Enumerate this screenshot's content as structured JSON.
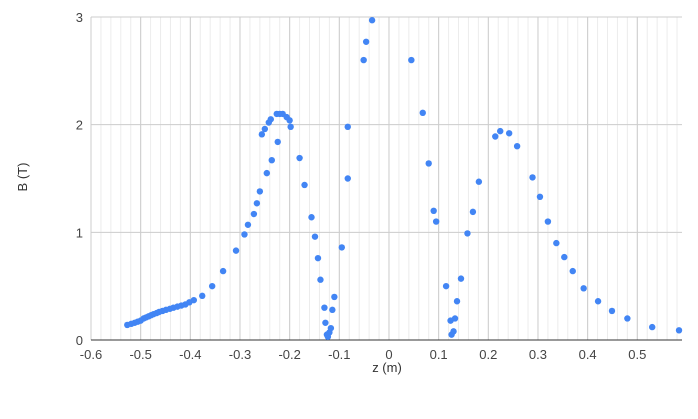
{
  "chart_data": {
    "type": "scatter",
    "xlabel": "z (m)",
    "ylabel": "B (T)",
    "xlim": [
      -0.6,
      0.59
    ],
    "ylim": [
      0,
      3
    ],
    "x_ticks": [
      -0.6,
      -0.5,
      -0.4,
      -0.3,
      -0.2,
      -0.1,
      0,
      0.1,
      0.2,
      0.3,
      0.4,
      0.5
    ],
    "x_tick_labels": [
      "-0.6",
      "-0.5",
      "-0.4",
      "-0.3",
      "-0.2",
      "-0.1",
      "0",
      "0.1",
      "0.2",
      "0.3",
      "0.4",
      "0.5"
    ],
    "y_ticks": [
      0,
      1,
      2,
      3
    ],
    "y_tick_labels": [
      "0",
      "1",
      "2",
      "3"
    ],
    "x_minor_step": 0.02,
    "grid": true,
    "legend": "none",
    "marker_color": "#4285F4",
    "series": [
      {
        "points": [
          [
            -0.527,
            0.14
          ],
          [
            -0.519,
            0.15
          ],
          [
            -0.512,
            0.16
          ],
          [
            -0.506,
            0.17
          ],
          [
            -0.5,
            0.18
          ],
          [
            -0.494,
            0.2
          ],
          [
            -0.489,
            0.21
          ],
          [
            -0.484,
            0.22
          ],
          [
            -0.479,
            0.23
          ],
          [
            -0.474,
            0.24
          ],
          [
            -0.468,
            0.25
          ],
          [
            -0.463,
            0.26
          ],
          [
            -0.456,
            0.27
          ],
          [
            -0.449,
            0.28
          ],
          [
            -0.441,
            0.29
          ],
          [
            -0.434,
            0.3
          ],
          [
            -0.426,
            0.31
          ],
          [
            -0.418,
            0.32
          ],
          [
            -0.41,
            0.33
          ],
          [
            -0.402,
            0.35
          ],
          [
            -0.393,
            0.37
          ],
          [
            -0.376,
            0.41
          ],
          [
            -0.356,
            0.5
          ],
          [
            -0.334,
            0.64
          ],
          [
            -0.308,
            0.83
          ],
          [
            -0.291,
            0.98
          ],
          [
            -0.284,
            1.07
          ],
          [
            -0.272,
            1.17
          ],
          [
            -0.266,
            1.27
          ],
          [
            -0.26,
            1.38
          ],
          [
            -0.256,
            1.91
          ],
          [
            -0.25,
            1.96
          ],
          [
            -0.246,
            1.55
          ],
          [
            -0.242,
            2.02
          ],
          [
            -0.238,
            2.05
          ],
          [
            -0.236,
            1.67
          ],
          [
            -0.226,
            2.1
          ],
          [
            -0.22,
            2.1
          ],
          [
            -0.224,
            1.84
          ],
          [
            -0.214,
            2.1
          ],
          [
            -0.206,
            2.07
          ],
          [
            -0.2,
            2.04
          ],
          [
            -0.198,
            1.98
          ],
          [
            -0.18,
            1.69
          ],
          [
            -0.17,
            1.44
          ],
          [
            -0.156,
            1.14
          ],
          [
            -0.149,
            0.96
          ],
          [
            -0.143,
            0.76
          ],
          [
            -0.138,
            0.56
          ],
          [
            -0.13,
            0.3
          ],
          [
            -0.128,
            0.16
          ],
          [
            -0.125,
            0.05
          ],
          [
            -0.123,
            0.03
          ],
          [
            -0.12,
            0.07
          ],
          [
            -0.117,
            0.11
          ],
          [
            -0.114,
            0.28
          ],
          [
            -0.11,
            0.4
          ],
          [
            -0.095,
            0.86
          ],
          [
            -0.083,
            1.5
          ],
          [
            -0.083,
            1.98
          ],
          [
            -0.051,
            2.6
          ],
          [
            -0.046,
            2.77
          ],
          [
            -0.034,
            2.97
          ],
          [
            0.045,
            2.6
          ],
          [
            0.068,
            2.11
          ],
          [
            0.08,
            1.64
          ],
          [
            0.09,
            1.2
          ],
          [
            0.095,
            1.1
          ],
          [
            0.115,
            0.5
          ],
          [
            0.124,
            0.18
          ],
          [
            0.126,
            0.05
          ],
          [
            0.13,
            0.08
          ],
          [
            0.133,
            0.2
          ],
          [
            0.137,
            0.36
          ],
          [
            0.145,
            0.57
          ],
          [
            0.158,
            0.99
          ],
          [
            0.169,
            1.19
          ],
          [
            0.181,
            1.47
          ],
          [
            0.214,
            1.89
          ],
          [
            0.224,
            1.94
          ],
          [
            0.242,
            1.92
          ],
          [
            0.258,
            1.8
          ],
          [
            0.289,
            1.51
          ],
          [
            0.304,
            1.33
          ],
          [
            0.32,
            1.1
          ],
          [
            0.337,
            0.9
          ],
          [
            0.353,
            0.77
          ],
          [
            0.37,
            0.64
          ],
          [
            0.392,
            0.48
          ],
          [
            0.421,
            0.36
          ],
          [
            0.449,
            0.27
          ],
          [
            0.48,
            0.2
          ],
          [
            0.53,
            0.12
          ],
          [
            0.584,
            0.09
          ]
        ]
      }
    ]
  }
}
